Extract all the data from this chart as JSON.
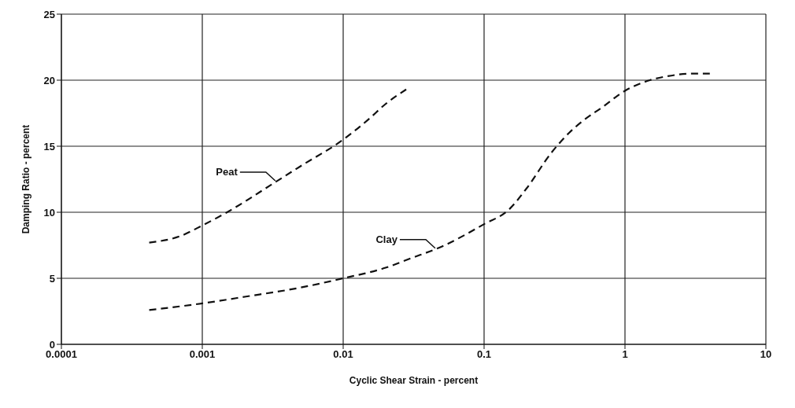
{
  "chart_data": {
    "type": "line",
    "xlabel": "Cyclic Shear Strain - percent",
    "ylabel": "Damping Ratio - percent",
    "log": "x",
    "xlim": [
      0.0001,
      10
    ],
    "xticks": [
      0.0001,
      0.001,
      0.01,
      0.1,
      1,
      10
    ],
    "ylim": [
      0,
      25
    ],
    "yticks": [
      0,
      5,
      10,
      15,
      20,
      25
    ],
    "grid": true,
    "legend": false,
    "marker": "none",
    "line_style": "dashed",
    "series": [
      {
        "color": "#111111",
        "x": [
          0.00042,
          0.0007,
          0.001,
          0.0015,
          0.002,
          0.003,
          0.005,
          0.01,
          0.015,
          0.02,
          0.028
        ],
        "values": [
          7.7,
          8.2,
          9,
          10,
          10.8,
          12,
          13.5,
          15.5,
          17,
          18.2,
          19.3
        ]
      },
      {
        "color": "#111111",
        "x": [
          0.00042,
          0.001,
          0.002,
          0.005,
          0.01,
          0.02,
          0.03,
          0.05,
          0.1,
          0.15,
          0.2,
          0.3,
          0.4,
          0.5,
          0.7,
          1,
          1.5,
          2,
          3,
          4
        ],
        "values": [
          2.6,
          3.1,
          3.6,
          4.3,
          5,
          5.8,
          6.5,
          7.4,
          9.1,
          10.2,
          11.8,
          14.5,
          16,
          16.9,
          18,
          19.2,
          20,
          20.3,
          20.5,
          20.5
        ]
      }
    ],
    "annotations": [
      {
        "text": "Peat",
        "x": 0.0033,
        "y": 12.2
      },
      {
        "text": "Clay",
        "x": 0.045,
        "y": 7.1
      }
    ]
  }
}
